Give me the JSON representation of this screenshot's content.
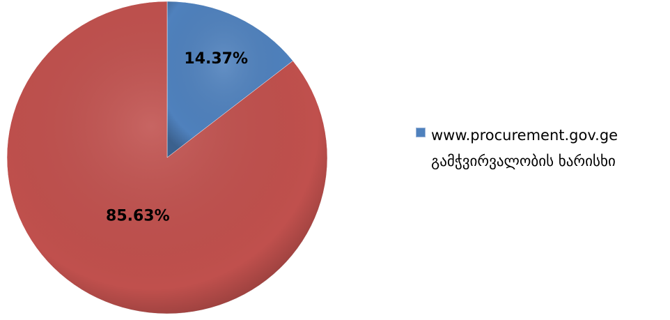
{
  "chart_data": {
    "type": "pie",
    "categories": [
      "www.procurement.gov.ge გამჭვირვალობის ხარისხი",
      null
    ],
    "values": [
      14.37,
      85.63
    ],
    "value_labels": [
      "14.37%",
      "85.63%"
    ],
    "colors": [
      "#4f81bd",
      "#c0504d"
    ],
    "legend": "right"
  }
}
